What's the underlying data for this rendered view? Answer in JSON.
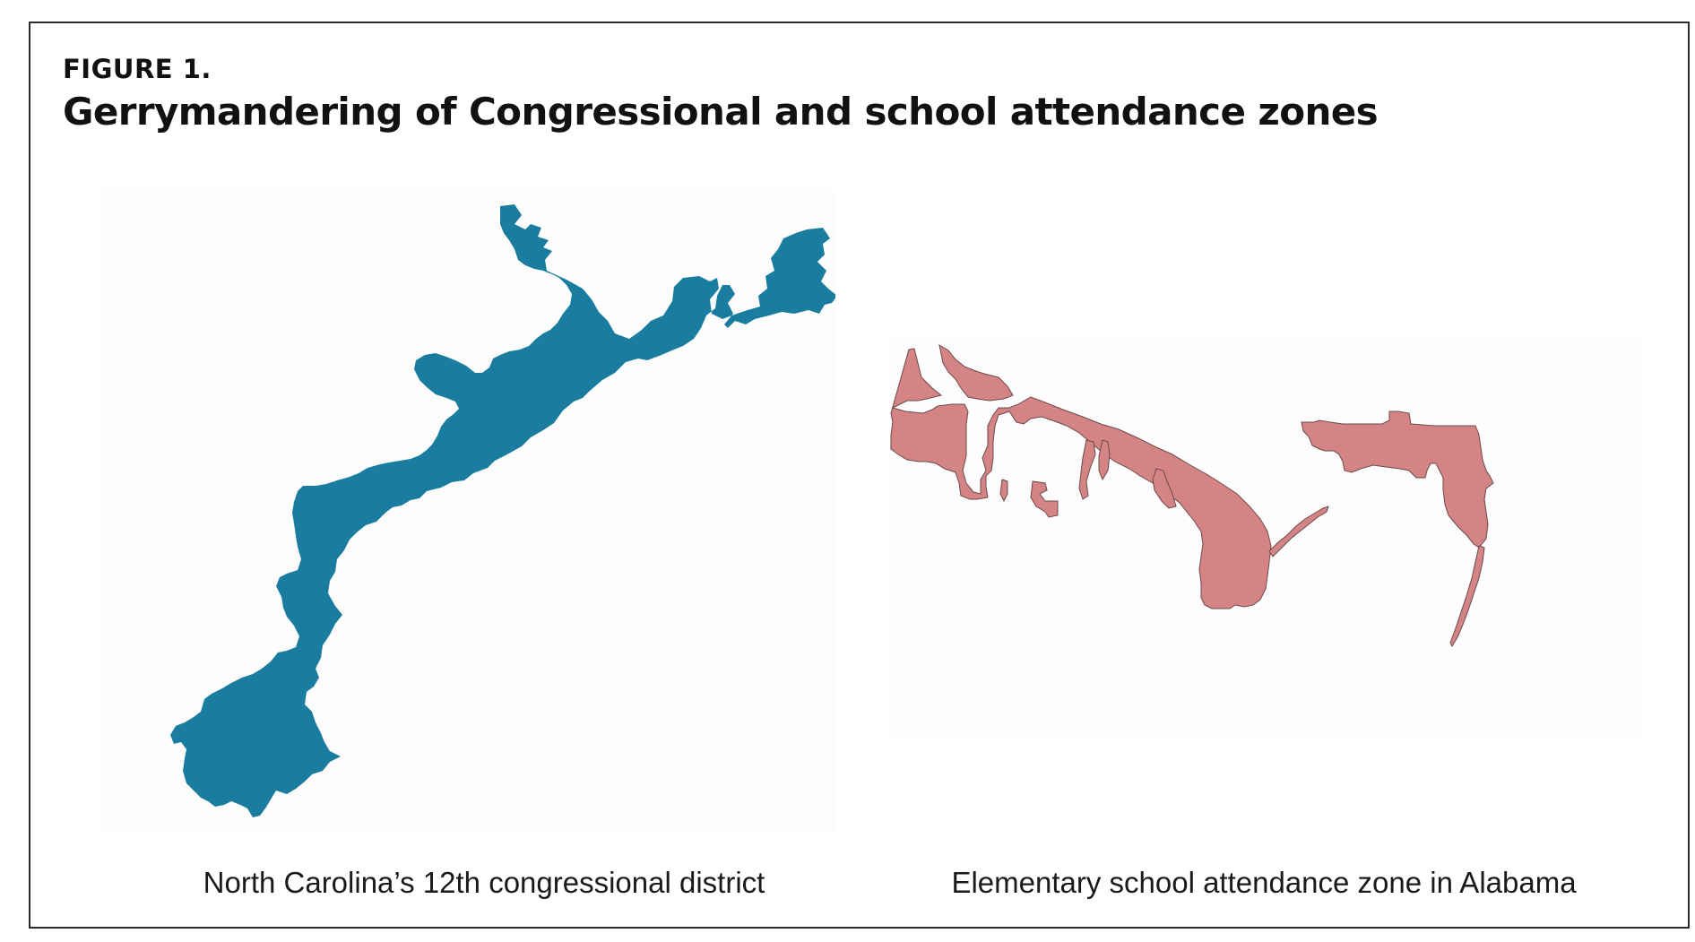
{
  "figure": {
    "label": "FIGURE 1.",
    "title": "Gerrymandering of Congressional and school attendance zones"
  },
  "maps": [
    {
      "caption": "North Carolina’s 12th congressional district",
      "fill_color": "#1a7da0"
    },
    {
      "caption": "Elementary school attendance zone in Alabama",
      "fill_color": "#d48485"
    }
  ]
}
